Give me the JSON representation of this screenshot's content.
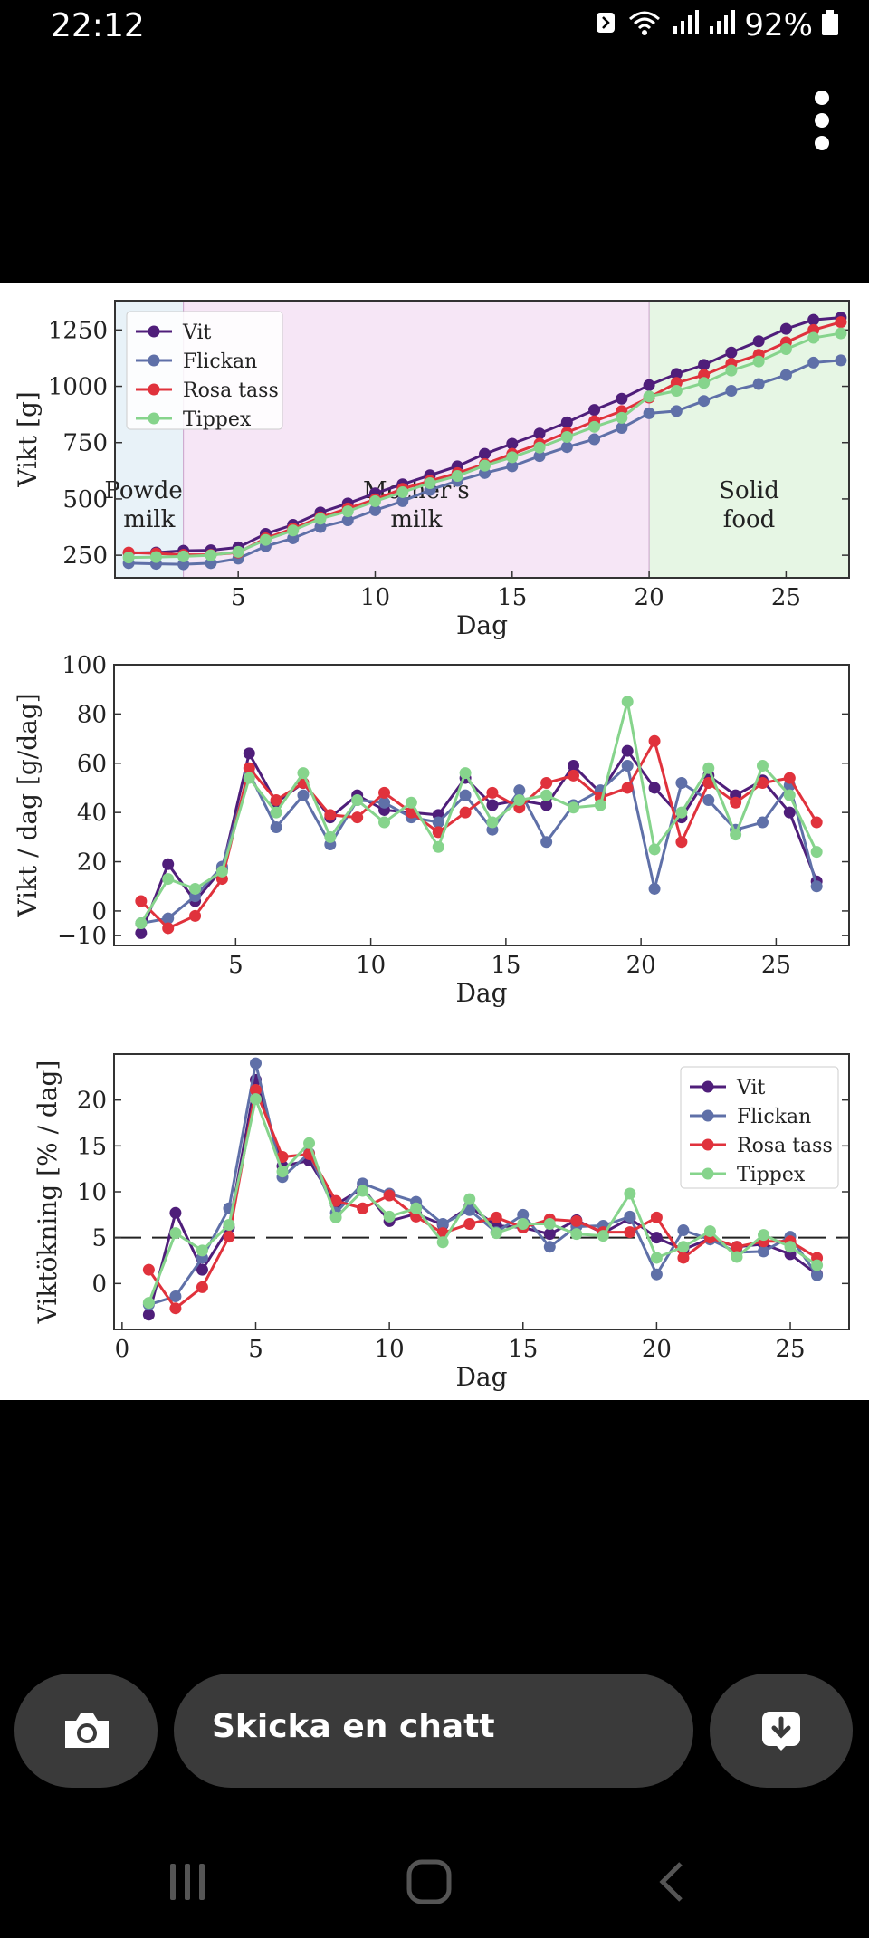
{
  "status_bar": {
    "time": "22:12",
    "battery": "92%"
  },
  "chat": {
    "placeholder": "Skicka en chatt"
  },
  "chart_data": [
    {
      "type": "line",
      "title": "",
      "xlabel": "Dag",
      "ylabel": "Vikt [g]",
      "xlim": [
        0.5,
        27.3
      ],
      "ylim": [
        150,
        1380
      ],
      "xticks": [
        "5",
        "10",
        "15",
        "20",
        "25"
      ],
      "yticks": [
        "250",
        "500",
        "750",
        "1000",
        "1250"
      ],
      "regions": [
        {
          "label_line1": "Powder",
          "label_line2": "milk",
          "from": 0.5,
          "to": 3,
          "color": "#e8f2f8"
        },
        {
          "label_line1": "Mother's",
          "label_line2": "milk",
          "from": 3,
          "to": 20,
          "color": "#f6e6f6"
        },
        {
          "label_line1": "Solid",
          "label_line2": "food",
          "from": 20,
          "to": 27.3,
          "color": "#e6f6e4"
        }
      ],
      "legend_position": "top-left",
      "x": [
        1,
        2,
        3,
        4,
        5,
        6,
        7,
        8,
        9,
        10,
        11,
        12,
        13,
        14,
        15,
        16,
        17,
        18,
        19,
        20,
        21,
        22,
        23,
        24,
        25,
        26,
        27
      ],
      "series": [
        {
          "name": "Vit",
          "color": "#4f1e7a",
          "values": [
            260,
            262,
            270,
            272,
            285,
            345,
            385,
            440,
            480,
            525,
            565,
            605,
            645,
            700,
            745,
            790,
            840,
            895,
            945,
            1005,
            1055,
            1095,
            1150,
            1200,
            1255,
            1295,
            1305
          ]
        },
        {
          "name": "Flickan",
          "color": "#5f70a8",
          "values": [
            215,
            212,
            210,
            215,
            235,
            290,
            325,
            375,
            405,
            450,
            490,
            540,
            580,
            615,
            645,
            690,
            730,
            765,
            815,
            880,
            890,
            935,
            980,
            1010,
            1050,
            1105,
            1115
          ]
        },
        {
          "name": "Rosa tass",
          "color": "#e0323c",
          "values": [
            262,
            258,
            252,
            252,
            262,
            325,
            368,
            418,
            458,
            498,
            545,
            580,
            615,
            655,
            700,
            745,
            795,
            845,
            890,
            950,
            1015,
            1050,
            1100,
            1140,
            1195,
            1250,
            1285
          ]
        },
        {
          "name": "Tippex",
          "color": "#86d48c",
          "values": [
            240,
            242,
            245,
            250,
            265,
            318,
            360,
            412,
            445,
            490,
            530,
            570,
            602,
            648,
            685,
            728,
            775,
            820,
            860,
            955,
            980,
            1015,
            1070,
            1110,
            1165,
            1215,
            1235
          ]
        }
      ]
    },
    {
      "type": "line",
      "title": "",
      "xlabel": "Dag",
      "ylabel": "Vikt / dag [g/dag]",
      "xlim": [
        0.5,
        27.7
      ],
      "ylim": [
        -14,
        100
      ],
      "xticks": [
        "5",
        "10",
        "15",
        "20",
        "25"
      ],
      "yticks": [
        "−10",
        "0",
        "20",
        "40",
        "60",
        "80",
        "100"
      ],
      "x": [
        1.5,
        2.5,
        3.5,
        4.5,
        5.5,
        6.5,
        7.5,
        8.5,
        9.5,
        10.5,
        11.5,
        12.5,
        13.5,
        14.5,
        15.5,
        16.5,
        17.5,
        18.5,
        19.5,
        20.5,
        21.5,
        22.5,
        23.5,
        24.5,
        25.5,
        26.5
      ],
      "series": [
        {
          "name": "Vit",
          "color": "#4f1e7a",
          "values": [
            -9,
            19,
            4,
            17,
            64,
            44,
            52,
            38,
            47,
            41,
            40,
            39,
            54,
            43,
            45,
            43,
            59,
            48,
            65,
            50,
            38,
            55,
            47,
            53,
            40,
            12
          ]
        },
        {
          "name": "Flickan",
          "color": "#5f70a8",
          "values": [
            -5,
            -3,
            6,
            18,
            56,
            34,
            47,
            27,
            45,
            44,
            38,
            36,
            47,
            33,
            49,
            28,
            43,
            49,
            59,
            9,
            52,
            45,
            33,
            36,
            51,
            10
          ]
        },
        {
          "name": "Rosa tass",
          "color": "#e0323c",
          "values": [
            4,
            -7,
            -2,
            13,
            58,
            45,
            52,
            39,
            38,
            48,
            40,
            32,
            40,
            48,
            42,
            52,
            55,
            46,
            50,
            69,
            28,
            52,
            44,
            52,
            54,
            36
          ]
        },
        {
          "name": "Tippex",
          "color": "#86d48c",
          "values": [
            -5,
            13,
            9,
            16,
            54,
            40,
            56,
            30,
            45,
            36,
            44,
            26,
            56,
            36,
            45,
            47,
            42,
            43,
            85,
            25,
            40,
            58,
            31,
            59,
            47,
            24
          ]
        }
      ]
    },
    {
      "type": "line",
      "title": "",
      "xlabel": "Dag",
      "ylabel": "Viktökning [% / dag]",
      "xlim": [
        -0.3,
        27.2
      ],
      "ylim": [
        -5,
        25
      ],
      "xticks": [
        "0",
        "5",
        "10",
        "15",
        "20",
        "25"
      ],
      "yticks": [
        "0",
        "5",
        "10",
        "15",
        "20"
      ],
      "reference_line": 5,
      "legend_position": "top-right",
      "x": [
        1,
        2,
        3,
        4,
        5,
        6,
        7,
        8,
        9,
        10,
        11,
        12,
        13,
        14,
        15,
        16,
        17,
        18,
        19,
        20,
        21,
        22,
        23,
        24,
        25,
        26
      ],
      "series": [
        {
          "name": "Vit",
          "color": "#4f1e7a",
          "values": [
            -3.4,
            7.7,
            1.5,
            6.1,
            22.2,
            12.8,
            13.4,
            8.6,
            10.4,
            6.8,
            7.6,
            6.4,
            8.4,
            6.3,
            6.1,
            5.4,
            6.9,
            5.5,
            7.1,
            5,
            3.7,
            4.9,
            4.0,
            4.3,
            3.2,
            1.0
          ]
        },
        {
          "name": "Flickan",
          "color": "#5f70a8",
          "values": [
            -2.3,
            -1.4,
            2.8,
            8.2,
            24.0,
            11.6,
            14.2,
            7.7,
            10.9,
            9.8,
            8.9,
            6.5,
            8.0,
            5.6,
            7.5,
            4.0,
            6.2,
            6.3,
            7.3,
            1.0,
            5.8,
            4.8,
            3.4,
            3.5,
            5.1,
            0.9
          ]
        },
        {
          "name": "Rosa tass",
          "color": "#e0323c",
          "values": [
            1.5,
            -2.7,
            -0.4,
            5.1,
            21.1,
            13.8,
            14.1,
            9.0,
            8.2,
            9.6,
            7.3,
            5.5,
            6.5,
            7.2,
            6.1,
            7.0,
            6.8,
            5.6,
            5.6,
            7.2,
            2.8,
            5.0,
            4.0,
            4.6,
            4.6,
            2.8
          ]
        },
        {
          "name": "Tippex",
          "color": "#86d48c",
          "values": [
            -2.1,
            5.5,
            3.6,
            6.4,
            20.1,
            12.2,
            15.3,
            7.2,
            10.1,
            7.3,
            8.2,
            4.5,
            9.2,
            5.5,
            6.5,
            6.5,
            5.4,
            5.2,
            9.8,
            2.8,
            4.0,
            5.7,
            2.9,
            5.3,
            4.0,
            2.0
          ]
        }
      ]
    }
  ]
}
